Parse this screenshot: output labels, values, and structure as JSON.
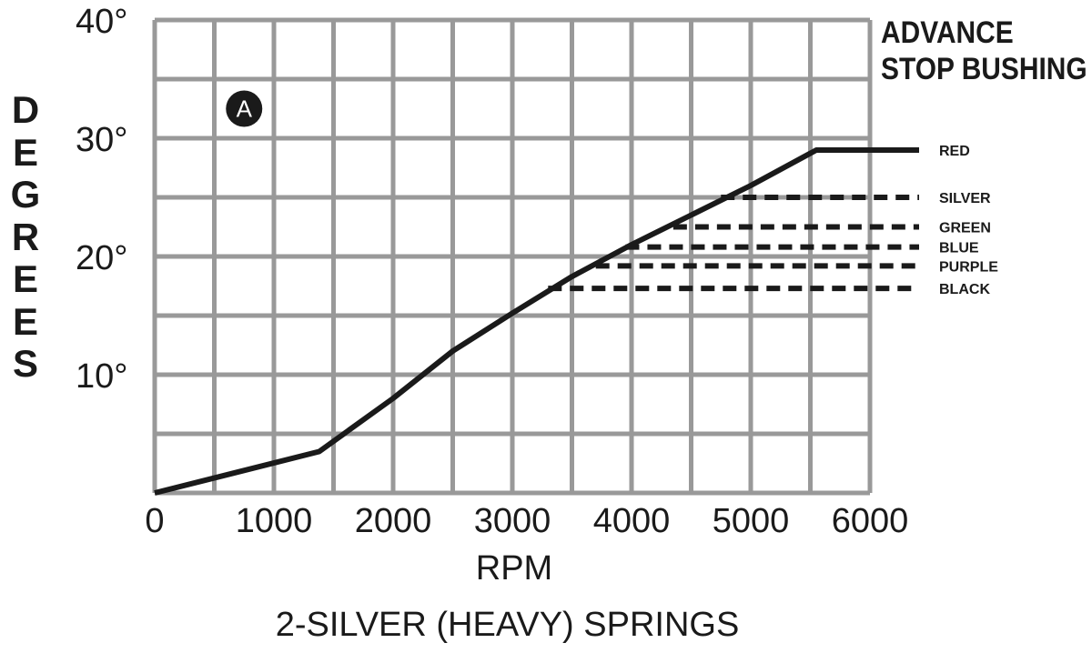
{
  "chart_data": {
    "type": "line",
    "title": "ADVANCE STOP BUSHING",
    "title_lines": [
      "ADVANCE",
      "STOP BUSHING"
    ],
    "marker": "A",
    "xlabel": "RPM",
    "ylabel": "DEGREES",
    "caption": "2-SILVER (HEAVY) SPRINGS",
    "xlim": [
      0,
      6000
    ],
    "ylim": [
      0,
      40
    ],
    "x_ticks": [
      0,
      1000,
      2000,
      3000,
      4000,
      5000,
      6000
    ],
    "x_tick_labels": [
      "0",
      "1000",
      "2000",
      "3000",
      "4000",
      "5000",
      "6000"
    ],
    "y_ticks": [
      10,
      20,
      30,
      40
    ],
    "y_tick_labels": [
      "10°",
      "20°",
      "30°",
      "40°"
    ],
    "grid": true,
    "grid_x_step": 500,
    "grid_y_step": 5,
    "curve": {
      "x": [
        0,
        1380,
        2000,
        2500,
        3000,
        3500,
        4000,
        4500,
        5000,
        5550,
        6300
      ],
      "y": [
        0,
        3.5,
        8.0,
        12.0,
        15.2,
        18.3,
        21.0,
        23.5,
        26.0,
        29.0,
        29.0
      ]
    },
    "series": [
      {
        "name": "RED",
        "style": "solid",
        "plateau": 29.0,
        "from_rpm": 5550
      },
      {
        "name": "SILVER",
        "style": "dashed",
        "plateau": 25.0,
        "from_rpm": 4750
      },
      {
        "name": "GREEN",
        "style": "dashed",
        "plateau": 22.5,
        "from_rpm": 4350
      },
      {
        "name": "BLUE",
        "style": "dashed",
        "plateau": 20.8,
        "from_rpm": 3950
      },
      {
        "name": "PURPLE",
        "style": "dashed",
        "plateau": 19.2,
        "from_rpm": 3700
      },
      {
        "name": "BLACK",
        "style": "dashed",
        "plateau": 17.3,
        "from_rpm": 3300
      }
    ],
    "colors": {
      "curve": "#1a1a1a",
      "grid": "#999999",
      "text": "#1a1a1a"
    }
  }
}
